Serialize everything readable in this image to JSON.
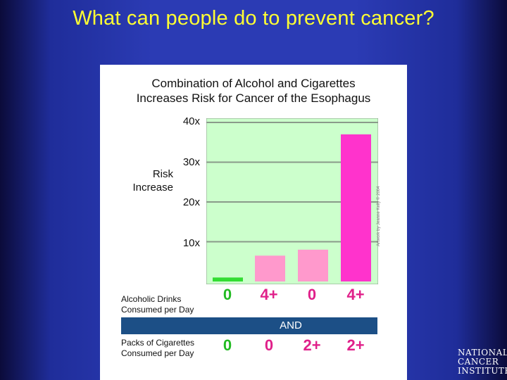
{
  "slide": {
    "title": "What can people do to prevent cancer?"
  },
  "colors": {
    "background": "#2b3bb4",
    "title": "#ffff33",
    "plot_background": "#ccffcc",
    "bar_green": "#33dd33",
    "bar_light_pink": "#ff99cc",
    "bar_magenta": "#ff33cc",
    "and_band": "#1c4f86"
  },
  "chart_data": {
    "type": "bar",
    "title_line1": "Combination of Alcohol and Cigarettes",
    "title_line2": "Increases Risk for Cancer of the Esophagus",
    "ylabel_line1": "Risk",
    "ylabel_line2": "Increase",
    "ylim": [
      0,
      40
    ],
    "yticks": [
      10,
      20,
      30,
      40
    ],
    "ytick_labels": [
      "10x",
      "20x",
      "30x",
      "40x"
    ],
    "grid": true,
    "categories": [
      "0 / 0",
      "4+ / 0",
      "0 / 2+",
      "4+ / 2+"
    ],
    "values": [
      1,
      6.5,
      8,
      37
    ],
    "alcohol_label_line1": "Alcoholic Drinks",
    "alcohol_label_line2": "Consumed per Day",
    "alcohol_values": [
      "0",
      "4+",
      "0",
      "4+"
    ],
    "cigarette_label_line1": "Packs of Cigarettes",
    "cigarette_label_line2": "Consumed per Day",
    "cigarette_values": [
      "0",
      "0",
      "2+",
      "2+"
    ],
    "connector": "AND",
    "credit": "Artwork by Jeanne Kelly © 2004"
  },
  "logo": {
    "line1": "NATIONAL",
    "line2": "CANCER",
    "line3": "INSTITUTE"
  }
}
